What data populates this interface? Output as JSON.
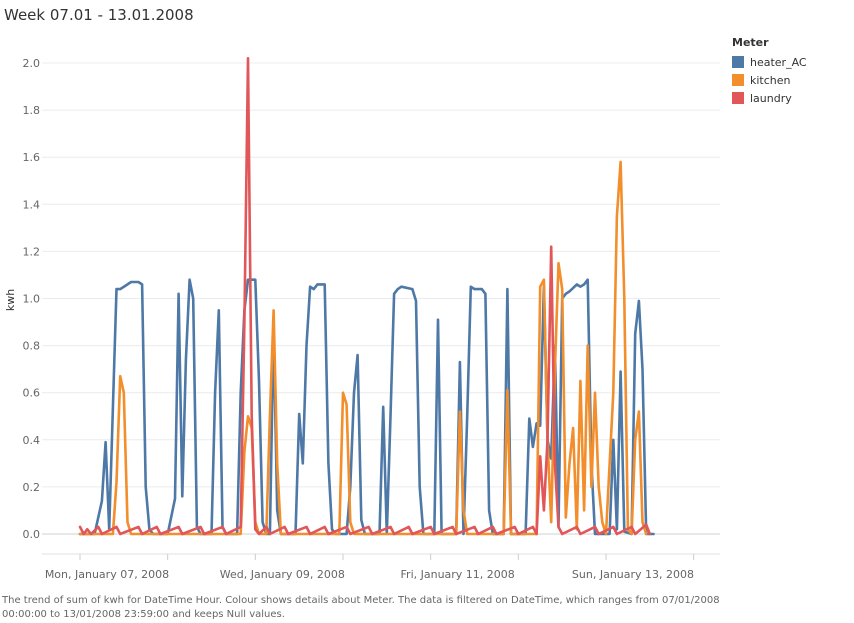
{
  "title": "Week 07.01 - 13.01.2008",
  "caption": "The trend of sum of kwh for DateTime Hour.  Colour shows details about Meter. The data is filtered on DateTime, which ranges from 07/01/2008 00:00:00 to 13/01/2008 23:59:00 and keeps Null values.",
  "legend": {
    "title": "Meter"
  },
  "chart_data": {
    "type": "line",
    "title": "Week 07.01 - 13.01.2008",
    "xlabel": "",
    "ylabel": "kwh",
    "x_unit": "hour",
    "x_range": [
      "2008-01-07 00:00",
      "2008-01-13 23:00"
    ],
    "ylim": [
      0,
      2.1
    ],
    "yticks": [
      0.0,
      0.2,
      0.4,
      0.6,
      0.8,
      1.0,
      1.2,
      1.4,
      1.6,
      1.8,
      2.0
    ],
    "ytick_labels": [
      "0.0",
      "0.2",
      "0.4",
      "0.6",
      "0.8",
      "1.0",
      "1.2",
      "1.4",
      "1.6",
      "1.8",
      "2.0"
    ],
    "xticks": [
      {
        "x": "2008-01-07 00:00",
        "label": "Mon, January 07, 2008"
      },
      {
        "x": "2008-01-09 00:00",
        "label": "Wed, January 09, 2008"
      },
      {
        "x": "2008-01-11 00:00",
        "label": "Fri, January 11, 2008"
      },
      {
        "x": "2008-01-13 00:00",
        "label": "Sun, January 13, 2008"
      }
    ],
    "grid": true,
    "legend_position": "top-right",
    "series": [
      {
        "name": "heater_AC",
        "color": "#4e79a7",
        "points": [
          [
            "2008-01-07 00:00",
            0
          ],
          [
            "2008-01-07 04:00",
            0
          ],
          [
            "2008-01-07 06:00",
            0.14
          ],
          [
            "2008-01-07 07:00",
            0.39
          ],
          [
            "2008-01-07 08:00",
            0.02
          ],
          [
            "2008-01-07 10:00",
            1.04
          ],
          [
            "2008-01-07 11:00",
            1.04
          ],
          [
            "2008-01-07 13:00",
            1.06
          ],
          [
            "2008-01-07 14:00",
            1.07
          ],
          [
            "2008-01-07 16:00",
            1.07
          ],
          [
            "2008-01-07 17:00",
            1.06
          ],
          [
            "2008-01-07 18:00",
            0.2
          ],
          [
            "2008-01-07 19:00",
            0.02
          ],
          [
            "2008-01-07 20:00",
            0
          ],
          [
            "2008-01-08 00:00",
            0
          ],
          [
            "2008-01-08 02:00",
            0.15
          ],
          [
            "2008-01-08 03:00",
            1.02
          ],
          [
            "2008-01-08 04:00",
            0.16
          ],
          [
            "2008-01-08 05:00",
            0.74
          ],
          [
            "2008-01-08 06:00",
            1.08
          ],
          [
            "2008-01-08 07:00",
            1.0
          ],
          [
            "2008-01-08 08:00",
            0.03
          ],
          [
            "2008-01-08 09:00",
            0
          ],
          [
            "2008-01-08 12:00",
            0
          ],
          [
            "2008-01-08 13:00",
            0.6
          ],
          [
            "2008-01-08 14:00",
            0.95
          ],
          [
            "2008-01-08 15:00",
            0.03
          ],
          [
            "2008-01-08 16:00",
            0
          ],
          [
            "2008-01-08 19:00",
            0
          ],
          [
            "2008-01-08 20:00",
            0.6
          ],
          [
            "2008-01-08 21:00",
            0.95
          ],
          [
            "2008-01-08 22:00",
            1.08
          ],
          [
            "2008-01-09 00:00",
            1.08
          ],
          [
            "2008-01-09 01:00",
            0.65
          ],
          [
            "2008-01-09 02:00",
            0.05
          ],
          [
            "2008-01-09 03:00",
            0
          ],
          [
            "2008-01-09 04:00",
            0
          ],
          [
            "2008-01-09 05:00",
            0.88
          ],
          [
            "2008-01-09 06:00",
            0.1
          ],
          [
            "2008-01-09 07:00",
            0
          ],
          [
            "2008-01-09 11:00",
            0
          ],
          [
            "2008-01-09 12:00",
            0.51
          ],
          [
            "2008-01-09 13:00",
            0.3
          ],
          [
            "2008-01-09 14:00",
            0.8
          ],
          [
            "2008-01-09 15:00",
            1.05
          ],
          [
            "2008-01-09 16:00",
            1.04
          ],
          [
            "2008-01-09 17:00",
            1.06
          ],
          [
            "2008-01-09 19:00",
            1.06
          ],
          [
            "2008-01-09 20:00",
            0.3
          ],
          [
            "2008-01-09 21:00",
            0.02
          ],
          [
            "2008-01-09 22:00",
            0
          ],
          [
            "2008-01-10 01:00",
            0
          ],
          [
            "2008-01-10 02:00",
            0.2
          ],
          [
            "2008-01-10 03:00",
            0.6
          ],
          [
            "2008-01-10 04:00",
            0.76
          ],
          [
            "2008-01-10 05:00",
            0.06
          ],
          [
            "2008-01-10 06:00",
            0
          ],
          [
            "2008-01-10 10:00",
            0
          ],
          [
            "2008-01-10 11:00",
            0.54
          ],
          [
            "2008-01-10 12:00",
            0
          ],
          [
            "2008-01-10 13:00",
            0.5
          ],
          [
            "2008-01-10 14:00",
            1.02
          ],
          [
            "2008-01-10 15:00",
            1.04
          ],
          [
            "2008-01-10 16:00",
            1.05
          ],
          [
            "2008-01-10 19:00",
            1.04
          ],
          [
            "2008-01-10 20:00",
            0.99
          ],
          [
            "2008-01-10 21:00",
            0.2
          ],
          [
            "2008-01-10 22:00",
            0
          ],
          [
            "2008-01-11 01:00",
            0
          ],
          [
            "2008-01-11 02:00",
            0.91
          ],
          [
            "2008-01-11 03:00",
            0
          ],
          [
            "2008-01-11 07:00",
            0
          ],
          [
            "2008-01-11 08:00",
            0.73
          ],
          [
            "2008-01-11 09:00",
            0
          ],
          [
            "2008-01-11 10:00",
            0.5
          ],
          [
            "2008-01-11 11:00",
            1.05
          ],
          [
            "2008-01-11 12:00",
            1.04
          ],
          [
            "2008-01-11 14:00",
            1.04
          ],
          [
            "2008-01-11 15:00",
            1.02
          ],
          [
            "2008-01-11 16:00",
            0.1
          ],
          [
            "2008-01-11 17:00",
            0
          ],
          [
            "2008-01-11 20:00",
            0
          ],
          [
            "2008-01-11 21:00",
            1.04
          ],
          [
            "2008-01-11 22:00",
            0
          ],
          [
            "2008-01-12 02:00",
            0
          ],
          [
            "2008-01-12 03:00",
            0.49
          ],
          [
            "2008-01-12 04:00",
            0.37
          ],
          [
            "2008-01-12 05:00",
            0.47
          ],
          [
            "2008-01-12 06:00",
            0.46
          ],
          [
            "2008-01-12 07:00",
            1.05
          ],
          [
            "2008-01-12 08:00",
            0.4
          ],
          [
            "2008-01-12 09:00",
            0.32
          ],
          [
            "2008-01-12 10:00",
            0.8
          ],
          [
            "2008-01-12 11:00",
            0.03
          ],
          [
            "2008-01-12 12:00",
            1.0
          ],
          [
            "2008-01-12 13:00",
            1.02
          ],
          [
            "2008-01-12 14:00",
            1.03
          ],
          [
            "2008-01-12 16:00",
            1.06
          ],
          [
            "2008-01-12 17:00",
            1.05
          ],
          [
            "2008-01-12 18:00",
            1.06
          ],
          [
            "2008-01-12 19:00",
            1.08
          ],
          [
            "2008-01-12 20:00",
            0.3
          ],
          [
            "2008-01-12 21:00",
            0
          ],
          [
            "2008-01-13 01:00",
            0
          ],
          [
            "2008-01-13 02:00",
            0.4
          ],
          [
            "2008-01-13 03:00",
            0.02
          ],
          [
            "2008-01-13 04:00",
            0.69
          ],
          [
            "2008-01-13 05:00",
            0.01
          ],
          [
            "2008-01-13 07:00",
            0
          ],
          [
            "2008-01-13 08:00",
            0.85
          ],
          [
            "2008-01-13 09:00",
            0.99
          ],
          [
            "2008-01-13 10:00",
            0.7
          ],
          [
            "2008-01-13 11:00",
            0
          ],
          [
            "2008-01-13 13:00",
            0
          ]
        ]
      },
      {
        "name": "kitchen",
        "color": "#f28e2b",
        "points": [
          [
            "2008-01-07 00:00",
            0
          ],
          [
            "2008-01-07 09:00",
            0
          ],
          [
            "2008-01-07 10:00",
            0.22
          ],
          [
            "2008-01-07 11:00",
            0.67
          ],
          [
            "2008-01-07 12:00",
            0.6
          ],
          [
            "2008-01-07 13:00",
            0.05
          ],
          [
            "2008-01-07 14:00",
            0
          ],
          [
            "2008-01-08 20:00",
            0
          ],
          [
            "2008-01-08 21:00",
            0.35
          ],
          [
            "2008-01-08 22:00",
            0.5
          ],
          [
            "2008-01-08 23:00",
            0.45
          ],
          [
            "2008-01-09 00:00",
            0.05
          ],
          [
            "2008-01-09 01:00",
            0
          ],
          [
            "2008-01-09 03:00",
            0
          ],
          [
            "2008-01-09 04:00",
            0.5
          ],
          [
            "2008-01-09 05:00",
            0.95
          ],
          [
            "2008-01-09 06:00",
            0.3
          ],
          [
            "2008-01-09 07:00",
            0
          ],
          [
            "2008-01-09 23:00",
            0
          ],
          [
            "2008-01-10 00:00",
            0.6
          ],
          [
            "2008-01-10 01:00",
            0.55
          ],
          [
            "2008-01-10 02:00",
            0.05
          ],
          [
            "2008-01-10 03:00",
            0
          ],
          [
            "2008-01-11 07:00",
            0
          ],
          [
            "2008-01-11 08:00",
            0.52
          ],
          [
            "2008-01-11 09:00",
            0.1
          ],
          [
            "2008-01-11 10:00",
            0
          ],
          [
            "2008-01-11 20:00",
            0
          ],
          [
            "2008-01-11 21:00",
            0.61
          ],
          [
            "2008-01-11 22:00",
            0
          ],
          [
            "2008-01-12 05:00",
            0
          ],
          [
            "2008-01-12 06:00",
            1.05
          ],
          [
            "2008-01-12 07:00",
            1.08
          ],
          [
            "2008-01-12 08:00",
            0.4
          ],
          [
            "2008-01-12 09:00",
            0.05
          ],
          [
            "2008-01-12 10:00",
            0.7
          ],
          [
            "2008-01-12 11:00",
            1.15
          ],
          [
            "2008-01-12 12:00",
            1.04
          ],
          [
            "2008-01-12 13:00",
            0.07
          ],
          [
            "2008-01-12 14:00",
            0.3
          ],
          [
            "2008-01-12 15:00",
            0.45
          ],
          [
            "2008-01-12 16:00",
            0.02
          ],
          [
            "2008-01-12 17:00",
            0.65
          ],
          [
            "2008-01-12 18:00",
            0.1
          ],
          [
            "2008-01-12 19:00",
            0.8
          ],
          [
            "2008-01-12 20:00",
            0.2
          ],
          [
            "2008-01-12 21:00",
            0.6
          ],
          [
            "2008-01-12 22:00",
            0.2
          ],
          [
            "2008-01-12 23:00",
            0.05
          ],
          [
            "2008-01-13 00:00",
            0
          ],
          [
            "2008-01-13 02:00",
            0.6
          ],
          [
            "2008-01-13 03:00",
            1.35
          ],
          [
            "2008-01-13 04:00",
            1.58
          ],
          [
            "2008-01-13 05:00",
            1.0
          ],
          [
            "2008-01-13 06:00",
            0.02
          ],
          [
            "2008-01-13 07:00",
            0
          ],
          [
            "2008-01-13 08:00",
            0.4
          ],
          [
            "2008-01-13 09:00",
            0.52
          ],
          [
            "2008-01-13 10:00",
            0.05
          ],
          [
            "2008-01-13 11:00",
            0
          ]
        ]
      },
      {
        "name": "laundry",
        "color": "#e15759",
        "points": [
          [
            "2008-01-07 00:00",
            0.03
          ],
          [
            "2008-01-07 01:00",
            0
          ],
          [
            "2008-01-07 02:00",
            0.02
          ],
          [
            "2008-01-07 03:00",
            0
          ],
          [
            "2008-01-07 05:00",
            0.03
          ],
          [
            "2008-01-07 06:00",
            0
          ],
          [
            "2008-01-07 10:00",
            0.03
          ],
          [
            "2008-01-07 11:00",
            0
          ],
          [
            "2008-01-07 16:00",
            0.03
          ],
          [
            "2008-01-07 17:00",
            0
          ],
          [
            "2008-01-07 21:00",
            0.03
          ],
          [
            "2008-01-07 22:00",
            0
          ],
          [
            "2008-01-08 03:00",
            0.03
          ],
          [
            "2008-01-08 04:00",
            0
          ],
          [
            "2008-01-08 09:00",
            0.03
          ],
          [
            "2008-01-08 10:00",
            0
          ],
          [
            "2008-01-08 15:00",
            0.03
          ],
          [
            "2008-01-08 16:00",
            0
          ],
          [
            "2008-01-08 20:00",
            0.03
          ],
          [
            "2008-01-08 21:00",
            0.9
          ],
          [
            "2008-01-08 22:00",
            2.02
          ],
          [
            "2008-01-08 23:00",
            0.5
          ],
          [
            "2008-01-09 00:00",
            0.02
          ],
          [
            "2008-01-09 01:00",
            0
          ],
          [
            "2008-01-09 03:00",
            0.03
          ],
          [
            "2008-01-09 04:00",
            0
          ],
          [
            "2008-01-09 08:00",
            0.03
          ],
          [
            "2008-01-09 09:00",
            0
          ],
          [
            "2008-01-09 14:00",
            0.03
          ],
          [
            "2008-01-09 15:00",
            0
          ],
          [
            "2008-01-09 19:00",
            0.03
          ],
          [
            "2008-01-09 20:00",
            0
          ],
          [
            "2008-01-10 01:00",
            0.03
          ],
          [
            "2008-01-10 02:00",
            0
          ],
          [
            "2008-01-10 07:00",
            0.03
          ],
          [
            "2008-01-10 08:00",
            0
          ],
          [
            "2008-01-10 13:00",
            0.03
          ],
          [
            "2008-01-10 14:00",
            0
          ],
          [
            "2008-01-10 18:00",
            0.03
          ],
          [
            "2008-01-10 19:00",
            0
          ],
          [
            "2008-01-11 00:00",
            0.03
          ],
          [
            "2008-01-11 01:00",
            0
          ],
          [
            "2008-01-11 06:00",
            0.03
          ],
          [
            "2008-01-11 07:00",
            0
          ],
          [
            "2008-01-11 12:00",
            0.03
          ],
          [
            "2008-01-11 13:00",
            0
          ],
          [
            "2008-01-11 17:00",
            0.03
          ],
          [
            "2008-01-11 18:00",
            0
          ],
          [
            "2008-01-11 23:00",
            0.03
          ],
          [
            "2008-01-12 00:00",
            0
          ],
          [
            "2008-01-12 04:00",
            0.03
          ],
          [
            "2008-01-12 05:00",
            0
          ],
          [
            "2008-01-12 06:00",
            0.33
          ],
          [
            "2008-01-12 07:00",
            0.1
          ],
          [
            "2008-01-12 08:00",
            0.4
          ],
          [
            "2008-01-12 09:00",
            1.22
          ],
          [
            "2008-01-12 10:00",
            0.3
          ],
          [
            "2008-01-12 11:00",
            0.03
          ],
          [
            "2008-01-12 12:00",
            0
          ],
          [
            "2008-01-12 16:00",
            0.03
          ],
          [
            "2008-01-12 17:00",
            0
          ],
          [
            "2008-01-12 21:00",
            0.03
          ],
          [
            "2008-01-12 22:00",
            0
          ],
          [
            "2008-01-13 02:00",
            0.03
          ],
          [
            "2008-01-13 03:00",
            0
          ],
          [
            "2008-01-13 07:00",
            0.03
          ],
          [
            "2008-01-13 08:00",
            0
          ],
          [
            "2008-01-13 11:00",
            0.04
          ],
          [
            "2008-01-13 12:00",
            0
          ]
        ]
      }
    ]
  }
}
